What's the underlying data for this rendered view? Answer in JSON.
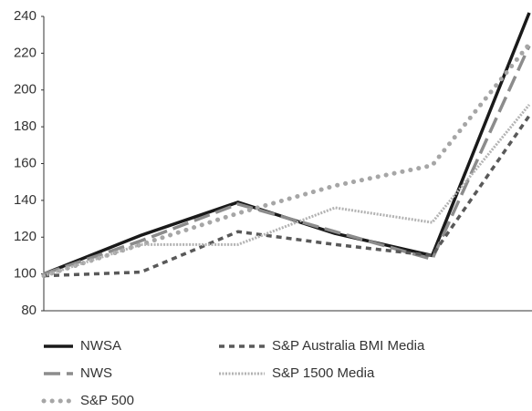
{
  "chart_data": {
    "type": "line",
    "categories": [
      null,
      null,
      null,
      null,
      null,
      null
    ],
    "series": [
      {
        "name": "NWSA",
        "color": "#1a1a1a",
        "dash": "solid",
        "values": [
          100,
          121,
          139,
          122,
          110,
          242
        ]
      },
      {
        "name": "NWS",
        "color": "#8c8c8c",
        "dash": "long-dash",
        "values": [
          100,
          118,
          138,
          123,
          108,
          224
        ]
      },
      {
        "name": "S&P 500",
        "color": "#a6a6a6",
        "dash": "round-dot",
        "values": [
          99,
          116,
          133,
          148,
          159,
          225
        ]
      },
      {
        "name": "S&P Australia BMI Media",
        "color": "#595959",
        "dash": "short-dash",
        "values": [
          99,
          101,
          123,
          116,
          110,
          186
        ]
      },
      {
        "name": "S&P 1500 Media",
        "color": "#b3b3b3",
        "dash": "fine-dot",
        "values": [
          99,
          116,
          116,
          136,
          128,
          192
        ]
      }
    ],
    "ylim": [
      80,
      240
    ],
    "yticks": [
      80,
      100,
      120,
      140,
      160,
      180,
      200,
      220,
      240
    ],
    "grid": false
  }
}
